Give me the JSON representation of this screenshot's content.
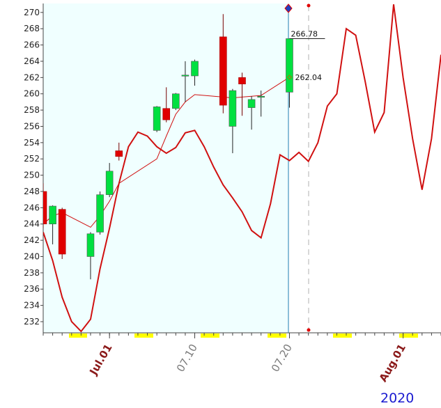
{
  "chart_data": {
    "type": "candlestick",
    "xlim": [
      "06.24",
      "08.05"
    ],
    "ylim": [
      230.63,
      271.1
    ],
    "yticks": [
      232,
      234,
      236,
      238,
      240,
      242,
      244,
      246,
      248,
      250,
      252,
      254,
      256,
      258,
      260,
      262,
      264,
      266,
      268,
      270
    ],
    "xticks": [
      {
        "value": "07.01",
        "label": "Jul.01",
        "color": "#8b1a1a"
      },
      {
        "value": "07.10",
        "label": "07.10",
        "color": "#7a7a7a"
      },
      {
        "value": "07.20",
        "label": "07.20",
        "color": "#7a7a7a"
      },
      {
        "value": "08.01",
        "label": "Aug.01",
        "color": "#8b1a1a"
      }
    ],
    "year_label": "2020",
    "candles": {
      "up_color": "#00e040",
      "down_color": "#e00000",
      "x": [
        "06.24",
        "06.25",
        "06.26",
        "06.29",
        "06.30",
        "07.01",
        "07.02",
        "07.06",
        "07.07",
        "07.08",
        "07.09",
        "07.10",
        "07.13",
        "07.14",
        "07.15",
        "07.16",
        "07.17",
        "07.20"
      ],
      "open": [
        248,
        244,
        245.8,
        240,
        243,
        247.6,
        253,
        255.5,
        258.2,
        258.2,
        262.2,
        262.2,
        267,
        256,
        262,
        258.3,
        259.6,
        260.2
      ],
      "high": [
        249,
        246.3,
        246,
        243,
        248,
        251.5,
        254,
        258.5,
        260.8,
        260.1,
        264,
        264.2,
        269.8,
        260.6,
        262.6,
        259.7,
        260.4,
        266.78
      ],
      "low": [
        243.5,
        241.5,
        239.7,
        237.2,
        242.7,
        247.3,
        251.8,
        255.3,
        256.5,
        258,
        259,
        261,
        257.6,
        252.7,
        257.3,
        255.6,
        257.2,
        258.3
      ],
      "close": [
        244,
        246.2,
        240.3,
        242.8,
        247.6,
        250.5,
        252.3,
        258.4,
        256.8,
        260,
        262.3,
        264,
        258.6,
        260.4,
        261.2,
        259.3,
        259.7,
        266.78
      ]
    },
    "series": [
      {
        "color": "#d01010",
        "width": 1,
        "x": [
          "06.24",
          "06.25",
          "06.26",
          "06.29",
          "06.30",
          "07.01",
          "07.02",
          "07.06",
          "07.07",
          "07.08",
          "07.09",
          "07.10",
          "07.13",
          "07.14",
          "07.15",
          "07.16",
          "07.17",
          "07.20"
        ],
        "values": [
          244,
          245,
          245.4,
          243.6,
          245,
          246.8,
          249,
          252,
          254.8,
          257.5,
          259,
          259.9,
          259.6,
          259.5,
          259.6,
          259.7,
          259.8,
          262.04
        ]
      },
      {
        "color": "#d01010",
        "width": 2,
        "x": [
          "06.24",
          "06.25",
          "06.26",
          "06.27",
          "06.28",
          "06.29",
          "06.30",
          "07.01",
          "07.02",
          "07.03",
          "07.04",
          "07.05",
          "07.06",
          "07.07",
          "07.08",
          "07.09",
          "07.10",
          "07.11",
          "07.12",
          "07.13",
          "07.14",
          "07.15",
          "07.16",
          "07.17",
          "07.18",
          "07.19",
          "07.20",
          "07.21",
          "07.22",
          "07.23",
          "07.24",
          "07.25",
          "07.26",
          "07.27",
          "07.28",
          "07.29",
          "07.30",
          "07.31",
          "08.01",
          "08.02",
          "08.03",
          "08.04",
          "08.05"
        ],
        "values": [
          243,
          239.5,
          235,
          232,
          230.8,
          232.3,
          238.5,
          243.5,
          249,
          253.5,
          255.3,
          254.8,
          253.5,
          252.7,
          253.4,
          255.2,
          255.5,
          253.5,
          251,
          248.8,
          247.2,
          245.5,
          243.2,
          242.3,
          246.5,
          252.5,
          251.8,
          252.8,
          251.7,
          254,
          258.5,
          260,
          268,
          267.2,
          261.5,
          255.3,
          257.7,
          271,
          262,
          254.5,
          248.2,
          254.5,
          264.8
        ]
      }
    ]
  }
}
